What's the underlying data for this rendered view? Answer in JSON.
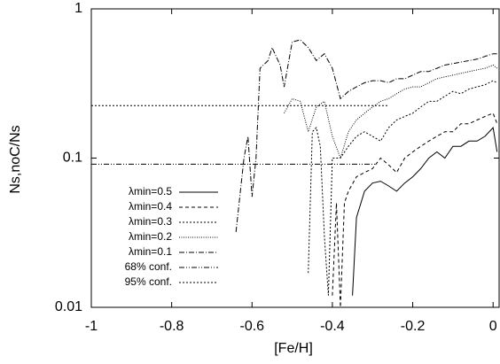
{
  "chart_data": {
    "type": "line",
    "xlabel": "[Fe/H]",
    "ylabel": "Ns,noC/Ns",
    "xlim": [
      -1,
      0.015
    ],
    "xticks": [
      -1,
      -0.8,
      -0.6,
      -0.4,
      -0.2,
      0
    ],
    "ylim": [
      0.01,
      1
    ],
    "yticks": [
      0.01,
      0.1,
      1
    ],
    "log_y": true,
    "grid": false,
    "legend": "lower left",
    "series": [
      {
        "name": "λmin=0.5",
        "color": "#000000",
        "dash": "none",
        "x": [
          -0.35,
          -0.34,
          -0.32,
          -0.3,
          -0.28,
          -0.26,
          -0.24,
          -0.22,
          -0.2,
          -0.18,
          -0.16,
          -0.14,
          -0.12,
          -0.1,
          -0.08,
          -0.06,
          -0.04,
          -0.02,
          0,
          0.01
        ],
        "values": [
          0.012,
          0.04,
          0.06,
          0.068,
          0.07,
          0.065,
          0.06,
          0.068,
          0.075,
          0.085,
          0.1,
          0.11,
          0.1,
          0.12,
          0.12,
          0.13,
          0.13,
          0.14,
          0.16,
          0.11
        ]
      },
      {
        "name": "λmin=0.4",
        "color": "#000000",
        "dash": "4,3",
        "x": [
          -0.4,
          -0.39,
          -0.38,
          -0.37,
          -0.36,
          -0.34,
          -0.32,
          -0.3,
          -0.28,
          -0.26,
          -0.24,
          -0.22,
          -0.2,
          -0.18,
          -0.16,
          -0.14,
          -0.12,
          -0.1,
          -0.08,
          -0.06,
          -0.04,
          -0.02,
          0,
          0.01
        ],
        "values": [
          0.012,
          0.05,
          0.01,
          0.05,
          0.06,
          0.075,
          0.08,
          0.085,
          0.1,
          0.09,
          0.08,
          0.1,
          0.11,
          0.12,
          0.13,
          0.14,
          0.15,
          0.15,
          0.17,
          0.17,
          0.18,
          0.19,
          0.2,
          0.17
        ]
      },
      {
        "name": "λmin=0.3",
        "color": "#000000",
        "dash": "2,2",
        "x": [
          -0.46,
          -0.45,
          -0.44,
          -0.43,
          -0.42,
          -0.41,
          -0.4,
          -0.38,
          -0.36,
          -0.34,
          -0.32,
          -0.3,
          -0.28,
          -0.26,
          -0.24,
          -0.22,
          -0.2,
          -0.18,
          -0.16,
          -0.14,
          -0.12,
          -0.1,
          -0.08,
          -0.06,
          -0.04,
          -0.02,
          0,
          0.01
        ],
        "values": [
          0.017,
          0.15,
          0.16,
          0.12,
          0.03,
          0.012,
          0.1,
          0.1,
          0.12,
          0.14,
          0.15,
          0.14,
          0.13,
          0.16,
          0.18,
          0.19,
          0.2,
          0.22,
          0.24,
          0.24,
          0.26,
          0.28,
          0.27,
          0.29,
          0.3,
          0.31,
          0.33,
          0.32
        ]
      },
      {
        "name": "λmin=0.2",
        "color": "#000000",
        "dash": "1,1.5",
        "x": [
          -0.52,
          -0.5,
          -0.48,
          -0.46,
          -0.44,
          -0.42,
          -0.4,
          -0.38,
          -0.36,
          -0.34,
          -0.32,
          -0.3,
          -0.28,
          -0.26,
          -0.24,
          -0.22,
          -0.2,
          -0.18,
          -0.16,
          -0.14,
          -0.12,
          -0.1,
          -0.08,
          -0.06,
          -0.04,
          -0.02,
          0,
          0.01
        ],
        "values": [
          0.2,
          0.25,
          0.24,
          0.15,
          0.22,
          0.24,
          0.14,
          0.1,
          0.15,
          0.18,
          0.2,
          0.22,
          0.24,
          0.25,
          0.27,
          0.29,
          0.3,
          0.3,
          0.32,
          0.34,
          0.35,
          0.36,
          0.37,
          0.38,
          0.39,
          0.4,
          0.42,
          0.4
        ]
      },
      {
        "name": "λmin=0.1",
        "color": "#000000",
        "dash": "6,2,1,2",
        "x": [
          -0.64,
          -0.62,
          -0.61,
          -0.6,
          -0.59,
          -0.58,
          -0.56,
          -0.55,
          -0.53,
          -0.52,
          -0.5,
          -0.48,
          -0.46,
          -0.44,
          -0.42,
          -0.4,
          -0.38,
          -0.36,
          -0.34,
          -0.32,
          -0.3,
          -0.28,
          -0.26,
          -0.24,
          -0.22,
          -0.2,
          -0.18,
          -0.16,
          -0.14,
          -0.12,
          -0.1,
          -0.08,
          -0.06,
          -0.04,
          -0.02,
          0,
          0.01
        ],
        "values": [
          0.032,
          0.1,
          0.14,
          0.055,
          0.1,
          0.4,
          0.45,
          0.55,
          0.42,
          0.3,
          0.6,
          0.62,
          0.55,
          0.45,
          0.5,
          0.4,
          0.25,
          0.28,
          0.3,
          0.32,
          0.33,
          0.33,
          0.32,
          0.34,
          0.34,
          0.36,
          0.38,
          0.38,
          0.4,
          0.42,
          0.43,
          0.44,
          0.45,
          0.46,
          0.48,
          0.5,
          0.5
        ]
      },
      {
        "name": "68% conf.",
        "color": "#000000",
        "dash": "6,2,1,2,1,2",
        "x": [
          -1,
          -0.29
        ],
        "values": [
          0.091,
          0.091
        ]
      },
      {
        "name": "95% conf.",
        "color": "#000000",
        "dash": "2,2,2,2",
        "x": [
          -1,
          -0.26
        ],
        "values": [
          0.225,
          0.225
        ]
      }
    ]
  }
}
